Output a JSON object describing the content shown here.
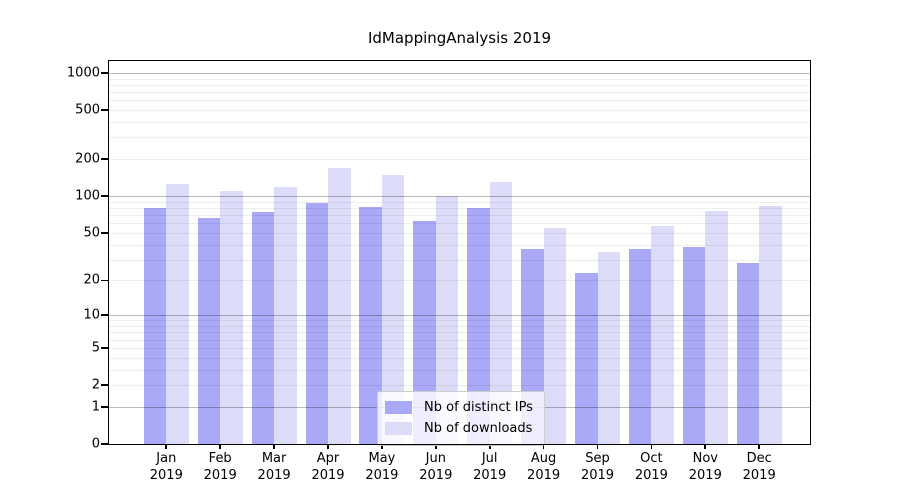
{
  "chart_data": {
    "type": "bar",
    "title": "IdMappingAnalysis 2019",
    "scale": "log1p",
    "grid": true,
    "legend_position": "bottom-center",
    "yticks": [
      0,
      1,
      2,
      5,
      10,
      20,
      50,
      100,
      200,
      500,
      1000
    ],
    "ylim": [
      0,
      1300
    ],
    "year": "2019",
    "categories": [
      "Jan",
      "Feb",
      "Mar",
      "Apr",
      "May",
      "Jun",
      "Jul",
      "Aug",
      "Sep",
      "Oct",
      "Nov",
      "Dec"
    ],
    "series": [
      {
        "key": "distinct-ips",
        "name": "Nb of distinct IPs",
        "color": "#a9a9f8",
        "values": [
          80,
          66,
          74,
          88,
          82,
          63,
          80,
          37,
          23,
          37,
          38,
          28
        ]
      },
      {
        "key": "downloads",
        "name": "Nb of downloads",
        "color": "#dcdcf9",
        "values": [
          125,
          110,
          118,
          168,
          150,
          101,
          130,
          55,
          35,
          57,
          76,
          83
        ]
      }
    ]
  }
}
